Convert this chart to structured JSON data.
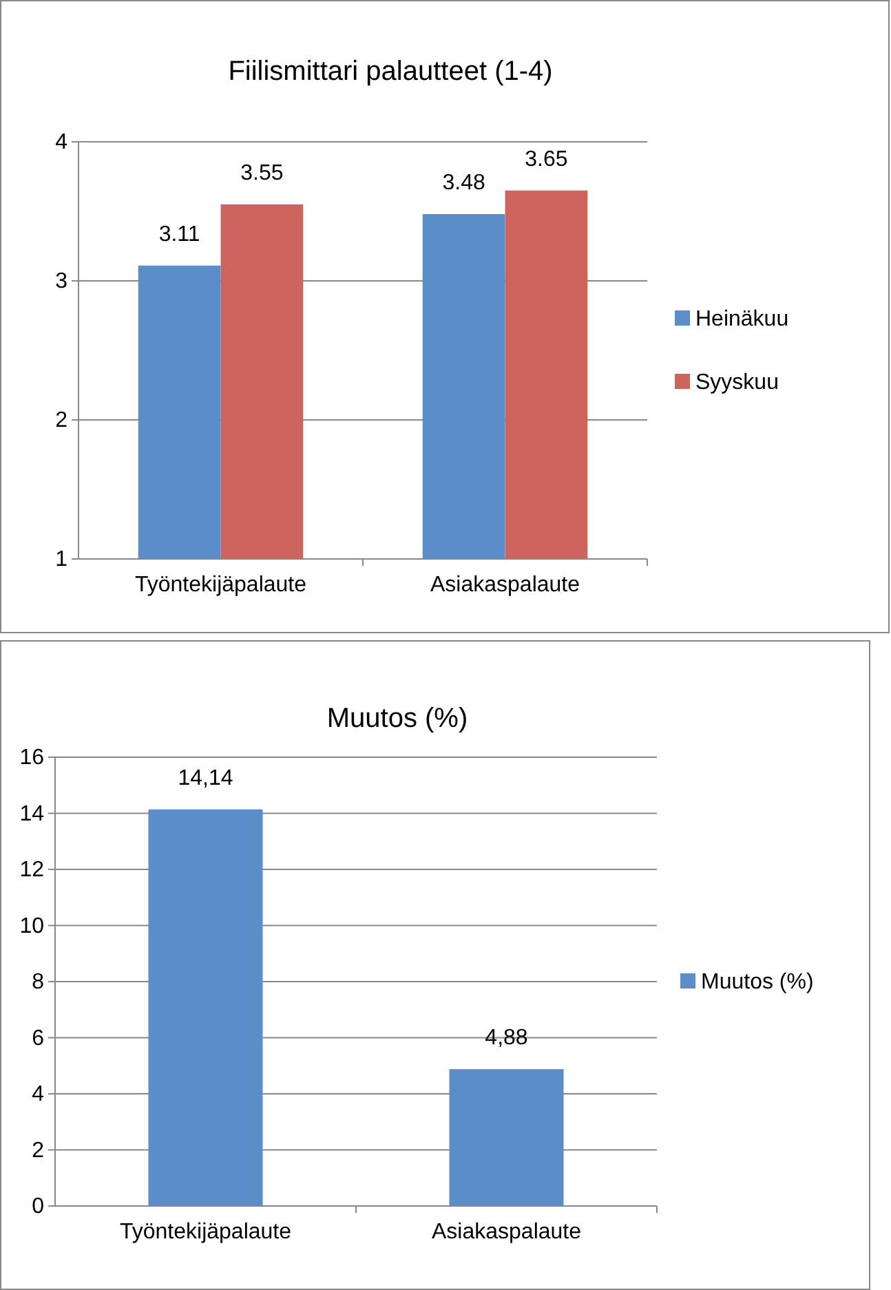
{
  "chart_data": [
    {
      "type": "bar",
      "title": "Fiilismittari palautteet (1-4)",
      "categories": [
        "Työntekijäpalaute",
        "Asiakaspalaute"
      ],
      "series": [
        {
          "name": "Heinäkuu",
          "color": "#5b8ec9",
          "values": [
            3.11,
            3.48
          ]
        },
        {
          "name": "Syyskuu",
          "color": "#cd655e",
          "values": [
            3.55,
            3.65
          ]
        }
      ],
      "ylim": [
        1,
        4
      ],
      "yticks": [
        1,
        2,
        3,
        4
      ],
      "grid": "y",
      "legend": "right",
      "data_labels": true
    },
    {
      "type": "bar",
      "title": "Muutos (%)",
      "categories": [
        "Työntekijäpalaute",
        "Asiakaspalaute"
      ],
      "series": [
        {
          "name": "Muutos (%)",
          "color": "#5b8ec9",
          "values": [
            14.14,
            4.88
          ],
          "value_labels": [
            "14,14",
            "4,88"
          ]
        }
      ],
      "ylim": [
        0,
        16
      ],
      "yticks": [
        0,
        2,
        4,
        6,
        8,
        10,
        12,
        14,
        16
      ],
      "grid": "y",
      "legend": "right"
    }
  ]
}
